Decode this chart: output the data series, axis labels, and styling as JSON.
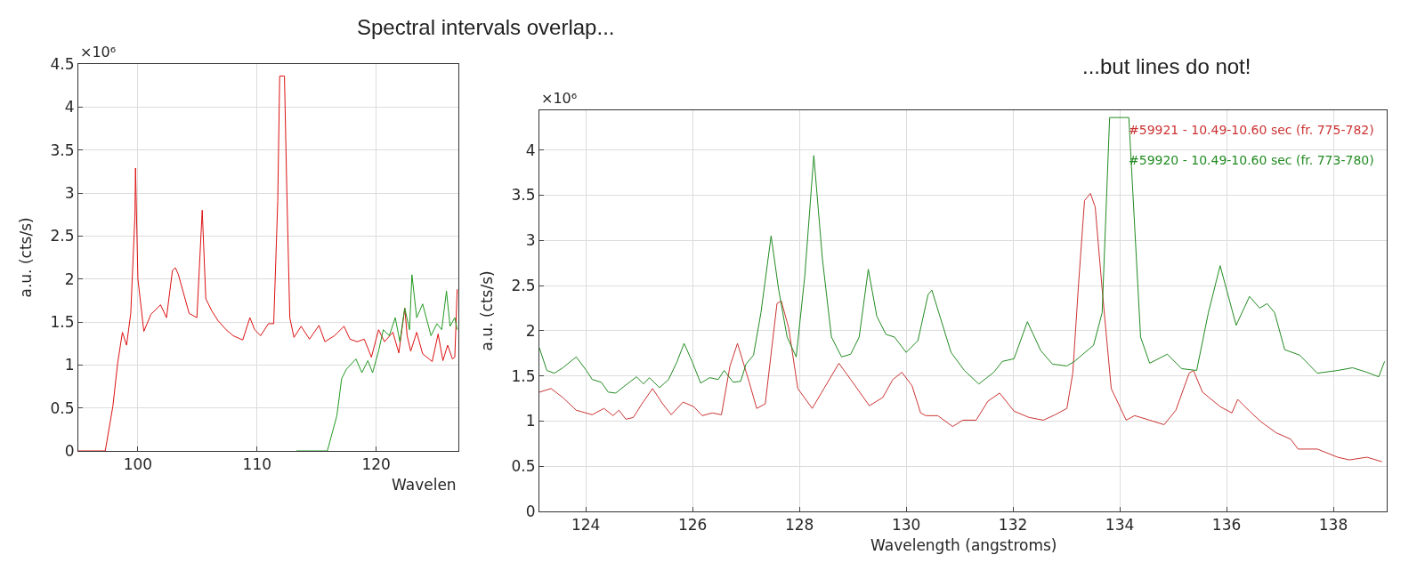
{
  "chart_data": [
    {
      "type": "line",
      "title": "Spectral intervals overlap...",
      "xlabel": "Wavelen",
      "ylabel": "a.u. (cts/s)",
      "annotations": [
        "×10⁶"
      ],
      "xlim": [
        95,
        126.9
      ],
      "ylim": [
        0,
        4.5
      ],
      "xticks": [
        100,
        110,
        120
      ],
      "yticks": [
        0,
        0.5,
        1,
        1.5,
        2,
        2.5,
        3,
        3.5,
        4,
        4.5
      ],
      "grid": true,
      "series": [
        {
          "color": "#dd1111",
          "x": [
            95.0,
            97.26,
            97.9,
            98.3,
            98.7,
            99.05,
            99.4,
            99.75,
            99.8,
            100.0,
            100.5,
            101.1,
            101.9,
            102.4,
            102.9,
            103.15,
            103.4,
            103.9,
            104.3,
            104.95,
            105.4,
            105.7,
            106.2,
            106.7,
            107.4,
            108.0,
            108.8,
            109.4,
            109.8,
            110.3,
            110.95,
            111.4,
            111.74,
            111.9,
            112.3,
            112.5,
            112.75,
            113.1,
            113.7,
            114.4,
            115.2,
            115.7,
            116.5,
            117.3,
            117.8,
            118.4,
            119.0,
            119.6,
            120.2,
            120.7,
            121.4,
            121.9,
            122.4,
            122.6,
            122.9,
            123.4,
            123.9,
            124.7,
            125.2,
            125.6,
            126.0,
            126.4,
            126.6,
            126.8
          ],
          "values": [
            0,
            0,
            0.52,
            1.02,
            1.38,
            1.23,
            1.6,
            2.73,
            3.29,
            2.0,
            1.39,
            1.59,
            1.7,
            1.55,
            2.1,
            2.13,
            2.05,
            1.8,
            1.6,
            1.55,
            2.8,
            1.77,
            1.63,
            1.52,
            1.41,
            1.34,
            1.29,
            1.55,
            1.41,
            1.34,
            1.48,
            1.48,
            2.91,
            4.36,
            4.36,
            3.02,
            1.55,
            1.32,
            1.45,
            1.3,
            1.46,
            1.27,
            1.34,
            1.45,
            1.3,
            1.27,
            1.3,
            1.09,
            1.41,
            1.27,
            1.38,
            1.14,
            1.66,
            1.34,
            1.16,
            1.38,
            1.13,
            1.04,
            1.36,
            1.05,
            1.23,
            1.07,
            1.09,
            1.88
          ]
        },
        {
          "color": "#229922",
          "x": [
            113.3,
            115.9,
            116.7,
            117.1,
            117.5,
            118.3,
            118.8,
            119.3,
            119.7,
            120.2,
            120.6,
            121.1,
            121.6,
            121.99,
            122.4,
            122.8,
            123.0,
            123.4,
            123.9,
            124.6,
            125.1,
            125.5,
            125.9,
            126.2,
            126.6,
            126.8
          ],
          "values": [
            0,
            0,
            0.41,
            0.84,
            0.95,
            1.07,
            0.91,
            1.05,
            0.91,
            1.16,
            1.41,
            1.34,
            1.55,
            1.27,
            1.66,
            1.41,
            2.05,
            1.55,
            1.71,
            1.34,
            1.48,
            1.41,
            1.86,
            1.45,
            1.55,
            1.41
          ]
        }
      ]
    },
    {
      "type": "line",
      "title": "...but lines do not!",
      "xlabel": "Wavelength (angstroms)",
      "ylabel": "a.u. (cts/s)",
      "annotations": [
        "×10⁶"
      ],
      "xlim": [
        123.13,
        139
      ],
      "ylim": [
        0,
        4.44
      ],
      "xticks": [
        124,
        126,
        128,
        130,
        132,
        134,
        136,
        138
      ],
      "yticks": [
        0,
        0.5,
        1,
        1.5,
        2,
        2.5,
        3,
        3.5,
        4
      ],
      "grid": true,
      "legend": "top right",
      "series": [
        {
          "name": "#59921 - 10.49-10.60 sec (fr. 775-782)",
          "color": "#cc3333",
          "x": [
            123.13,
            123.35,
            123.57,
            123.82,
            124.12,
            124.34,
            124.51,
            124.62,
            124.75,
            124.89,
            125.05,
            125.25,
            125.44,
            125.6,
            125.82,
            126.02,
            126.18,
            126.37,
            126.54,
            126.7,
            126.84,
            127.06,
            127.2,
            127.36,
            127.58,
            127.66,
            127.8,
            127.97,
            128.24,
            128.46,
            128.74,
            128.96,
            129.31,
            129.56,
            129.75,
            129.92,
            130.11,
            130.27,
            130.37,
            130.59,
            130.87,
            131.06,
            131.31,
            131.53,
            131.75,
            132.02,
            132.3,
            132.57,
            132.79,
            133.01,
            133.12,
            133.23,
            133.34,
            133.45,
            133.54,
            133.67,
            133.84,
            134.12,
            134.28,
            134.56,
            134.83,
            135.05,
            135.3,
            135.38,
            135.55,
            135.88,
            136.1,
            136.21,
            136.43,
            136.65,
            136.93,
            137.2,
            137.34,
            137.7,
            138.08,
            138.3,
            138.63,
            138.91
          ],
          "values": [
            1.32,
            1.36,
            1.26,
            1.12,
            1.07,
            1.14,
            1.06,
            1.12,
            1.02,
            1.04,
            1.19,
            1.36,
            1.19,
            1.07,
            1.21,
            1.16,
            1.06,
            1.09,
            1.07,
            1.61,
            1.86,
            1.43,
            1.14,
            1.19,
            2.3,
            2.33,
            2.03,
            1.36,
            1.14,
            1.36,
            1.64,
            1.46,
            1.17,
            1.26,
            1.46,
            1.54,
            1.39,
            1.09,
            1.06,
            1.06,
            0.94,
            1.01,
            1.01,
            1.22,
            1.31,
            1.11,
            1.04,
            1.01,
            1.07,
            1.14,
            1.53,
            2.53,
            3.44,
            3.52,
            3.37,
            2.46,
            1.36,
            1.01,
            1.06,
            1.01,
            0.96,
            1.12,
            1.53,
            1.56,
            1.32,
            1.16,
            1.09,
            1.24,
            1.11,
            0.99,
            0.87,
            0.8,
            0.69,
            0.69,
            0.6,
            0.57,
            0.6,
            0.55
          ]
        },
        {
          "name": "#59920 - 10.49-10.60 sec (fr. 773-780)",
          "color": "#228b22",
          "x": [
            123.13,
            123.27,
            123.41,
            123.57,
            123.82,
            124.01,
            124.12,
            124.29,
            124.42,
            124.56,
            124.73,
            124.95,
            125.08,
            125.19,
            125.38,
            125.55,
            125.71,
            125.84,
            125.99,
            126.15,
            126.32,
            126.48,
            126.59,
            126.76,
            126.9,
            127.0,
            127.14,
            127.28,
            127.47,
            127.61,
            127.77,
            127.94,
            128.1,
            128.27,
            128.43,
            128.6,
            128.79,
            128.96,
            129.12,
            129.29,
            129.45,
            129.62,
            129.78,
            130.0,
            130.22,
            130.41,
            130.48,
            130.84,
            131.09,
            131.36,
            131.64,
            131.8,
            132.02,
            132.27,
            132.52,
            132.74,
            133.01,
            133.15,
            133.51,
            133.67,
            133.81,
            134.17,
            134.39,
            134.56,
            134.89,
            135.16,
            135.44,
            135.66,
            135.88,
            136.18,
            136.43,
            136.62,
            136.76,
            136.9,
            137.09,
            137.37,
            137.7,
            138.08,
            138.36,
            138.63,
            138.85,
            138.96
          ],
          "values": [
            1.81,
            1.56,
            1.53,
            1.59,
            1.71,
            1.56,
            1.46,
            1.43,
            1.32,
            1.31,
            1.39,
            1.49,
            1.41,
            1.48,
            1.37,
            1.46,
            1.66,
            1.86,
            1.66,
            1.42,
            1.48,
            1.46,
            1.56,
            1.43,
            1.44,
            1.63,
            1.73,
            2.2,
            3.05,
            2.46,
            1.93,
            1.71,
            2.6,
            3.94,
            2.8,
            1.93,
            1.71,
            1.74,
            1.93,
            2.68,
            2.16,
            1.96,
            1.93,
            1.76,
            1.89,
            2.4,
            2.45,
            1.76,
            1.56,
            1.41,
            1.54,
            1.66,
            1.69,
            2.1,
            1.78,
            1.63,
            1.61,
            1.66,
            1.84,
            2.2,
            4.36,
            4.36,
            1.93,
            1.64,
            1.74,
            1.58,
            1.56,
            2.2,
            2.72,
            2.06,
            2.38,
            2.25,
            2.3,
            2.2,
            1.79,
            1.73,
            1.53,
            1.56,
            1.59,
            1.54,
            1.49,
            1.66
          ]
        }
      ]
    }
  ]
}
